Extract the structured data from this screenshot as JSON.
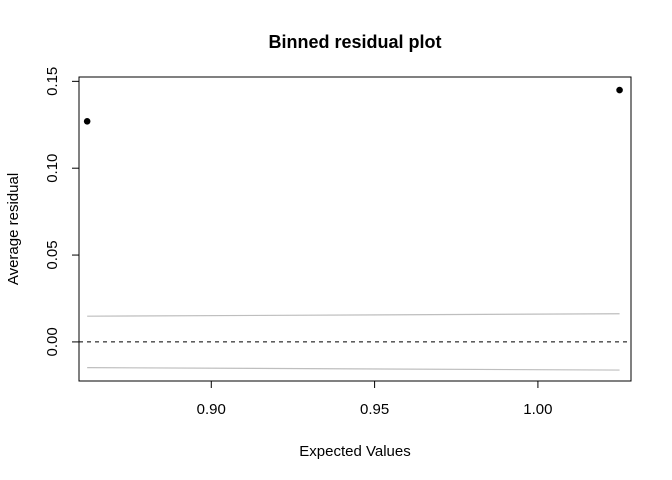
{
  "chart_data": {
    "type": "scatter",
    "title": "Binned residual plot",
    "xlabel": "Expected Values",
    "ylabel": "Average residual",
    "xlim": [
      0.8595,
      1.0285
    ],
    "ylim": [
      -0.0225,
      0.1525
    ],
    "x_ticks": [
      0.9,
      0.95,
      1.0
    ],
    "x_tick_labels": [
      "0.90",
      "0.95",
      "1.00"
    ],
    "y_ticks": [
      0.0,
      0.05,
      0.1,
      0.15
    ],
    "y_tick_labels": [
      "0.00",
      "0.05",
      "0.10",
      "0.15"
    ],
    "grid": false,
    "points": [
      {
        "x": 0.862,
        "y": 0.127
      },
      {
        "x": 1.025,
        "y": 0.145
      }
    ],
    "reference_line": {
      "y": 0.0,
      "style": "dashed",
      "color": "#000000"
    },
    "bound_upper": [
      {
        "x": 0.862,
        "y": 0.0148
      },
      {
        "x": 1.025,
        "y": 0.0162
      }
    ],
    "bound_lower": [
      {
        "x": 0.862,
        "y": -0.0148
      },
      {
        "x": 1.025,
        "y": -0.0162
      }
    ],
    "bound_color": "#bebebe",
    "point_color": "#000000"
  }
}
